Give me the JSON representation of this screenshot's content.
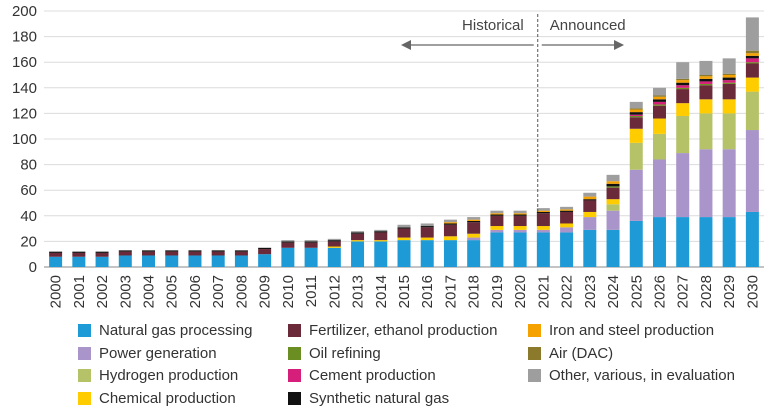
{
  "chart_data": {
    "type": "bar",
    "stacked": true,
    "categories": [
      "2000",
      "2001",
      "2002",
      "2003",
      "2004",
      "2005",
      "2006",
      "2007",
      "2008",
      "2009",
      "2010",
      "2011",
      "2012",
      "2013",
      "2014",
      "2015",
      "2016",
      "2017",
      "2018",
      "2019",
      "2020",
      "2021",
      "2022",
      "2023",
      "2024",
      "2025",
      "2026",
      "2027",
      "2028",
      "2029",
      "2030"
    ],
    "ylim": [
      0,
      200
    ],
    "yticks": [
      0,
      20,
      40,
      60,
      80,
      100,
      120,
      140,
      160,
      180,
      200
    ],
    "grid": "horizontal",
    "legend_position": "bottom",
    "annotations": {
      "historical_label": "Historical",
      "announced_label": "Announced"
    },
    "series": [
      {
        "name": "Natural gas processing",
        "color": "#1E9BD7",
        "values": [
          8,
          8,
          8,
          9,
          9,
          9,
          9,
          9,
          9,
          10,
          15,
          15,
          15,
          20,
          20,
          21,
          21,
          21,
          21,
          27,
          27,
          27,
          27,
          29,
          29,
          36,
          39,
          39,
          39,
          39,
          43
        ]
      },
      {
        "name": "Power generation",
        "color": "#A995C9",
        "values": [
          0,
          0,
          0,
          0,
          0,
          0,
          0,
          0,
          0,
          0,
          0,
          0,
          0,
          0,
          0,
          0,
          0,
          0,
          2,
          2,
          2,
          2,
          4,
          10,
          15,
          40,
          45,
          50,
          53,
          53,
          64
        ]
      },
      {
        "name": "Hydrogen production",
        "color": "#B5C268",
        "values": [
          0,
          0,
          0,
          0,
          0,
          0,
          0,
          0,
          0,
          0,
          0,
          0,
          0,
          0,
          0,
          0,
          0,
          0,
          0,
          0,
          0,
          0,
          0,
          0,
          5,
          21,
          20,
          29,
          28,
          28,
          30
        ]
      },
      {
        "name": "Chemical production",
        "color": "#FFCC00",
        "values": [
          0,
          0,
          0,
          0,
          0,
          0,
          0,
          0,
          0,
          0,
          0,
          0,
          1,
          1,
          1,
          2,
          2,
          3,
          3,
          3,
          3,
          3,
          3,
          4,
          4,
          11,
          12,
          10,
          11,
          11,
          11
        ]
      },
      {
        "name": "Fertilizer, ethanol production",
        "color": "#6B2A3A",
        "values": [
          3,
          3,
          3,
          3,
          3,
          3,
          3,
          3,
          3,
          4,
          4,
          4,
          4,
          5,
          6,
          7,
          8,
          9,
          9,
          8,
          8,
          10,
          9,
          9,
          9,
          9,
          10,
          11,
          11,
          12,
          11
        ]
      },
      {
        "name": "Oil refining",
        "color": "#6B8E23",
        "values": [
          0,
          0,
          0,
          0,
          0,
          0,
          0,
          0,
          0,
          0,
          0,
          0,
          0,
          0,
          0,
          0,
          0,
          0,
          0,
          0,
          0,
          0,
          0,
          0,
          1,
          1,
          1,
          1,
          1,
          1,
          1
        ]
      },
      {
        "name": "Cement production",
        "color": "#D61F7A",
        "values": [
          0,
          0,
          0,
          0,
          0,
          0,
          0,
          0,
          0,
          0,
          0,
          0,
          0,
          0,
          0,
          0,
          0,
          0,
          0,
          0,
          0,
          0,
          0,
          0,
          0,
          1,
          2,
          2,
          2,
          2,
          3
        ]
      },
      {
        "name": "Synthetic natural gas",
        "color": "#111111",
        "values": [
          1,
          1,
          1,
          1,
          1,
          1,
          1,
          1,
          1,
          1,
          1,
          1,
          1,
          1,
          1,
          1,
          1,
          1,
          1,
          1,
          1,
          1,
          1,
          1,
          2,
          2,
          2,
          2,
          2,
          2,
          2
        ]
      },
      {
        "name": "Iron and steel production",
        "color": "#F5A100",
        "values": [
          0,
          0,
          0,
          0,
          0,
          0,
          0,
          0,
          0,
          0,
          0,
          0,
          0,
          0,
          0,
          0,
          0,
          1,
          1,
          1,
          1,
          1,
          1,
          2,
          2,
          2,
          2,
          2,
          2,
          2,
          2
        ]
      },
      {
        "name": "Air (DAC)",
        "color": "#8C7A2C",
        "values": [
          0,
          0,
          0,
          0,
          0,
          0,
          0,
          0,
          0,
          0,
          0,
          0,
          0,
          0,
          0,
          0,
          0,
          0,
          0,
          0,
          0,
          0,
          0,
          0,
          0,
          1,
          1,
          1,
          1,
          1,
          2
        ]
      },
      {
        "name": "Other, various, in evaluation",
        "color": "#9E9E9E",
        "values": [
          0,
          0,
          0,
          0,
          0,
          0,
          0,
          0,
          0,
          0,
          1,
          1,
          1,
          1,
          1,
          2,
          2,
          2,
          2,
          2,
          2,
          2,
          2,
          3,
          5,
          5,
          6,
          13,
          11,
          12,
          26
        ]
      }
    ]
  }
}
